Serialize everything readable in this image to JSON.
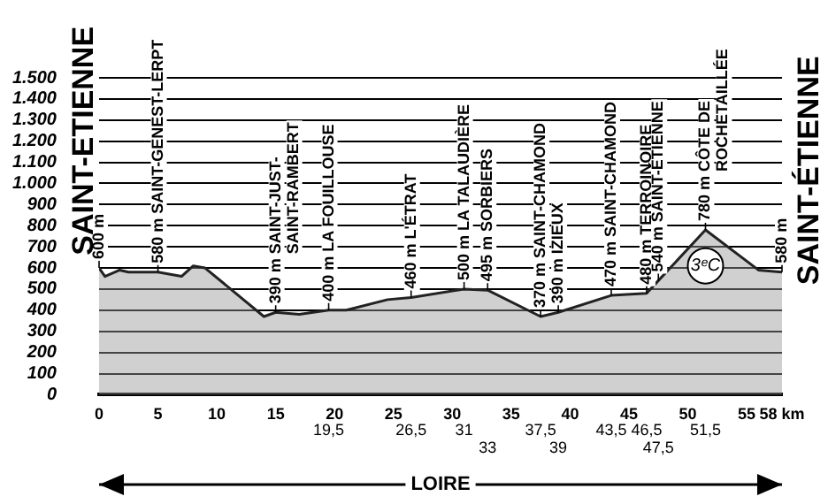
{
  "chart_data": {
    "type": "area",
    "marker": "none",
    "grid": "y",
    "legend": false,
    "x": [
      0,
      0.5,
      1.75,
      2.5,
      5,
      7,
      8,
      9,
      14,
      15,
      17,
      19.5,
      21,
      24.5,
      26.5,
      31,
      33,
      37.5,
      39,
      43.5,
      46.5,
      47.5,
      51.5,
      56,
      58
    ],
    "series": [
      {
        "color": "#222222",
        "values": [
          600,
          560,
          590,
          580,
          580,
          560,
          610,
          600,
          370,
          390,
          380,
          400,
          400,
          450,
          460,
          500,
          495,
          370,
          390,
          470,
          480,
          540,
          780,
          590,
          580
        ]
      }
    ],
    "xlim": [
      0,
      58
    ],
    "xticks": [
      0,
      5,
      10,
      15,
      20,
      25,
      30,
      35,
      40,
      45,
      50,
      55,
      {
        "value": 58,
        "label": "58 km"
      }
    ],
    "ylim": [
      0,
      1500
    ],
    "yticks": [
      0,
      100,
      200,
      300,
      400,
      500,
      600,
      700,
      800,
      900,
      {
        "value": 1000,
        "label": "1.000"
      },
      {
        "value": 1100,
        "label": "1.100"
      },
      {
        "value": 1200,
        "label": "1.200"
      },
      {
        "value": 1300,
        "label": "1.300"
      },
      {
        "value": 1400,
        "label": "1.400"
      },
      {
        "value": 1500,
        "label": "1.500"
      }
    ],
    "annotations": [
      {
        "text": "600 m",
        "x": 0,
        "y": 600
      },
      {
        "text": "580 m SAINT-GENEST-LERPT",
        "x": 5,
        "y": 580
      },
      {
        "text": "390 m SAINT-JUST-\nSAINT-RAMBERT",
        "x": 15,
        "y": 390
      },
      {
        "text": "400 m LA FOUILLOUSE",
        "x": 19.5,
        "y": 400
      },
      {
        "text": "460 m L'ÉTRAT",
        "x": 26.5,
        "y": 460
      },
      {
        "text": "500 m LA TALAUDIÈRE",
        "x": 31,
        "y": 500
      },
      {
        "text": "495 m SORBIERS",
        "x": 33,
        "y": 495
      },
      {
        "text": "370 m SAINT-CHAMOND",
        "x": 37.5,
        "y": 370
      },
      {
        "text": "390 m IZIEUX",
        "x": 39,
        "y": 390
      },
      {
        "text": "470 m SAINT-CHAMOND",
        "x": 43.5,
        "y": 470
      },
      {
        "text": "480 m TERROINOIRE",
        "x": 46.5,
        "y": 480
      },
      {
        "text": "540 m SAINT-ÉTIENNE",
        "x": 47.5,
        "y": 540
      },
      {
        "text": "780 m CÔTE DE\nROCHETAILLÉE",
        "x": 51.5,
        "y": 780
      },
      {
        "text": "580 m",
        "x": 58,
        "y": 580
      },
      "SAINT-ETIENNE",
      "SAINT-ÉTIENNE",
      "LOIRE",
      {
        "text": "3ᵉC",
        "x": 51.5,
        "y": 610
      },
      {
        "text": "19,5",
        "x": 19.5,
        "y": 0
      },
      {
        "text": "26,5",
        "x": 26.5,
        "y": 0
      },
      {
        "text": "31",
        "x": 31,
        "y": 0
      },
      {
        "text": "33",
        "x": 33,
        "y": 0
      },
      {
        "text": "37,5",
        "x": 37.5,
        "y": 0
      },
      {
        "text": "39",
        "x": 39,
        "y": 0
      },
      {
        "text": "43,5",
        "x": 43.5,
        "y": 0
      },
      {
        "text": "46,5",
        "x": 46.5,
        "y": 0
      },
      {
        "text": "47,5",
        "x": 47.5,
        "y": 0
      },
      {
        "text": "51,5",
        "x": 51.5,
        "y": 0
      }
    ]
  }
}
